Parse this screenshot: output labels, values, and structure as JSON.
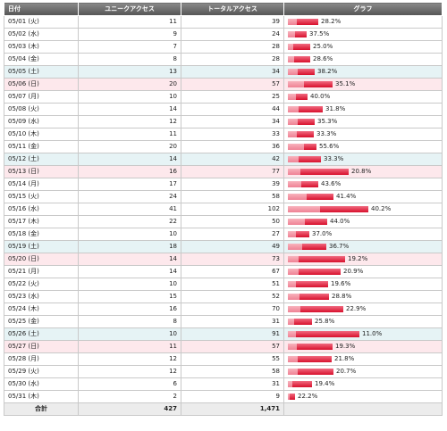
{
  "headers": {
    "date": "日付",
    "unique": "ユニークアクセス",
    "total": "トータルアクセス",
    "graph": "グラフ"
  },
  "rows": [
    {
      "date": "05/01 (火)",
      "unique": 11,
      "total": 39,
      "pct": "28.2%",
      "day": "weekday"
    },
    {
      "date": "05/02 (水)",
      "unique": 9,
      "total": 24,
      "pct": "37.5%",
      "day": "weekday"
    },
    {
      "date": "05/03 (木)",
      "unique": 7,
      "total": 28,
      "pct": "25.0%",
      "day": "weekday"
    },
    {
      "date": "05/04 (金)",
      "unique": 8,
      "total": 28,
      "pct": "28.6%",
      "day": "weekday"
    },
    {
      "date": "05/05 (土)",
      "unique": 13,
      "total": 34,
      "pct": "38.2%",
      "day": "sat"
    },
    {
      "date": "05/06 (日)",
      "unique": 20,
      "total": 57,
      "pct": "35.1%",
      "day": "sun"
    },
    {
      "date": "05/07 (月)",
      "unique": 10,
      "total": 25,
      "pct": "40.0%",
      "day": "weekday"
    },
    {
      "date": "05/08 (火)",
      "unique": 14,
      "total": 44,
      "pct": "31.8%",
      "day": "weekday"
    },
    {
      "date": "05/09 (水)",
      "unique": 12,
      "total": 34,
      "pct": "35.3%",
      "day": "weekday"
    },
    {
      "date": "05/10 (木)",
      "unique": 11,
      "total": 33,
      "pct": "33.3%",
      "day": "weekday"
    },
    {
      "date": "05/11 (金)",
      "unique": 20,
      "total": 36,
      "pct": "55.6%",
      "day": "weekday"
    },
    {
      "date": "05/12 (土)",
      "unique": 14,
      "total": 42,
      "pct": "33.3%",
      "day": "sat"
    },
    {
      "date": "05/13 (日)",
      "unique": 16,
      "total": 77,
      "pct": "20.8%",
      "day": "sun"
    },
    {
      "date": "05/14 (月)",
      "unique": 17,
      "total": 39,
      "pct": "43.6%",
      "day": "weekday"
    },
    {
      "date": "05/15 (火)",
      "unique": 24,
      "total": 58,
      "pct": "41.4%",
      "day": "weekday"
    },
    {
      "date": "05/16 (水)",
      "unique": 41,
      "total": 102,
      "pct": "40.2%",
      "day": "weekday"
    },
    {
      "date": "05/17 (木)",
      "unique": 22,
      "total": 50,
      "pct": "44.0%",
      "day": "weekday"
    },
    {
      "date": "05/18 (金)",
      "unique": 10,
      "total": 27,
      "pct": "37.0%",
      "day": "weekday"
    },
    {
      "date": "05/19 (土)",
      "unique": 18,
      "total": 49,
      "pct": "36.7%",
      "day": "sat"
    },
    {
      "date": "05/20 (日)",
      "unique": 14,
      "total": 73,
      "pct": "19.2%",
      "day": "sun"
    },
    {
      "date": "05/21 (月)",
      "unique": 14,
      "total": 67,
      "pct": "20.9%",
      "day": "weekday"
    },
    {
      "date": "05/22 (火)",
      "unique": 10,
      "total": 51,
      "pct": "19.6%",
      "day": "weekday"
    },
    {
      "date": "05/23 (水)",
      "unique": 15,
      "total": 52,
      "pct": "28.8%",
      "day": "weekday"
    },
    {
      "date": "05/24 (木)",
      "unique": 16,
      "total": 70,
      "pct": "22.9%",
      "day": "weekday"
    },
    {
      "date": "05/25 (金)",
      "unique": 8,
      "total": 31,
      "pct": "25.8%",
      "day": "weekday"
    },
    {
      "date": "05/26 (土)",
      "unique": 10,
      "total": 91,
      "pct": "11.0%",
      "day": "sat"
    },
    {
      "date": "05/27 (日)",
      "unique": 11,
      "total": 57,
      "pct": "19.3%",
      "day": "sun"
    },
    {
      "date": "05/28 (月)",
      "unique": 12,
      "total": 55,
      "pct": "21.8%",
      "day": "weekday"
    },
    {
      "date": "05/29 (火)",
      "unique": 12,
      "total": 58,
      "pct": "20.7%",
      "day": "weekday"
    },
    {
      "date": "05/30 (水)",
      "unique": 6,
      "total": 31,
      "pct": "19.4%",
      "day": "weekday"
    },
    {
      "date": "05/31 (木)",
      "unique": 2,
      "total": 9,
      "pct": "22.2%",
      "day": "weekday"
    }
  ],
  "totals": {
    "label": "合計",
    "unique": "427",
    "total": "1,471"
  },
  "colors": {
    "bar_total": "#d8102c",
    "bar_unique": "#f8b2bd",
    "saturday_row": "#e6f3f5",
    "sunday_row": "#fde8ec",
    "header_bg": "#6e6e6e"
  },
  "graph_scale_max": 102
}
